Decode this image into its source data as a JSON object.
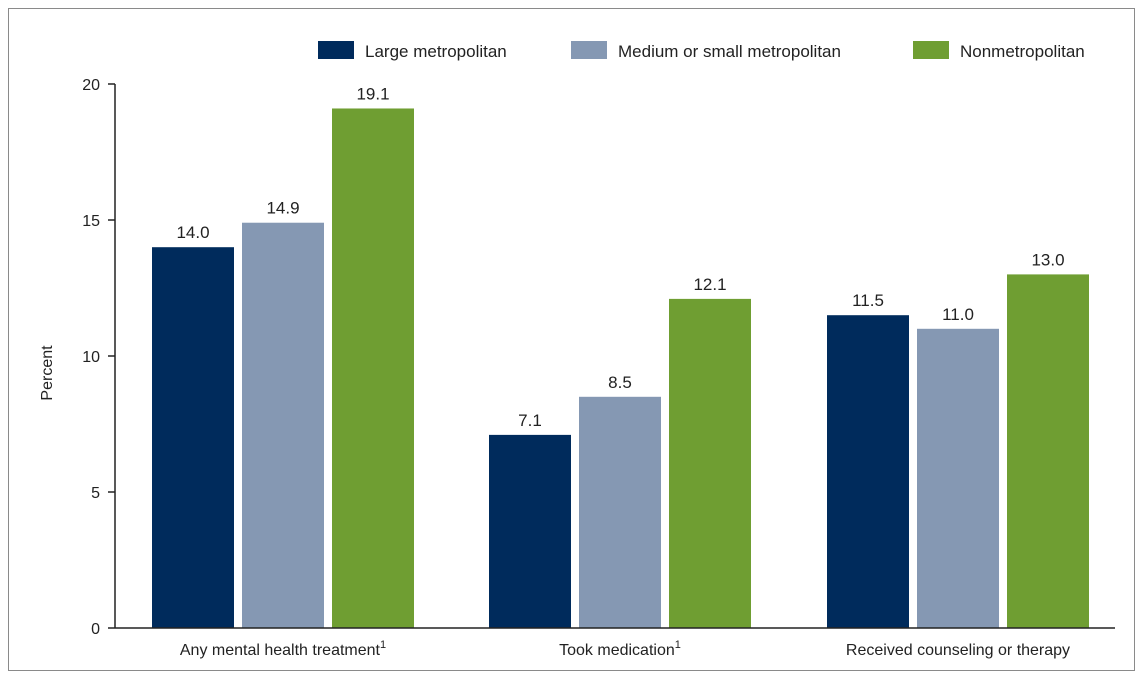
{
  "chart_data": {
    "type": "bar",
    "categories": [
      "Any mental health treatment",
      "Took medication",
      "Received counseling or therapy"
    ],
    "category_superscripts": [
      "1",
      "1",
      ""
    ],
    "series": [
      {
        "name": "Large metropolitan",
        "color": "#002b5c",
        "values": [
          14.0,
          7.1,
          11.5
        ]
      },
      {
        "name": "Medium or small metropolitan",
        "color": "#8598b3",
        "values": [
          14.9,
          8.5,
          11.0
        ]
      },
      {
        "name": "Nonmetropolitan",
        "color": "#6f9e32",
        "values": [
          19.1,
          12.1,
          13.0
        ]
      }
    ],
    "value_labels": [
      [
        "14.0",
        "7.1",
        "11.5"
      ],
      [
        "14.9",
        "8.5",
        "11.0"
      ],
      [
        "19.1",
        "12.1",
        "13.0"
      ]
    ],
    "ylabel": "Percent",
    "xlabel": "",
    "ylim": [
      0,
      20
    ],
    "yticks": [
      0,
      5,
      10,
      15,
      20
    ],
    "grid": false,
    "legend_position": "top-right"
  }
}
